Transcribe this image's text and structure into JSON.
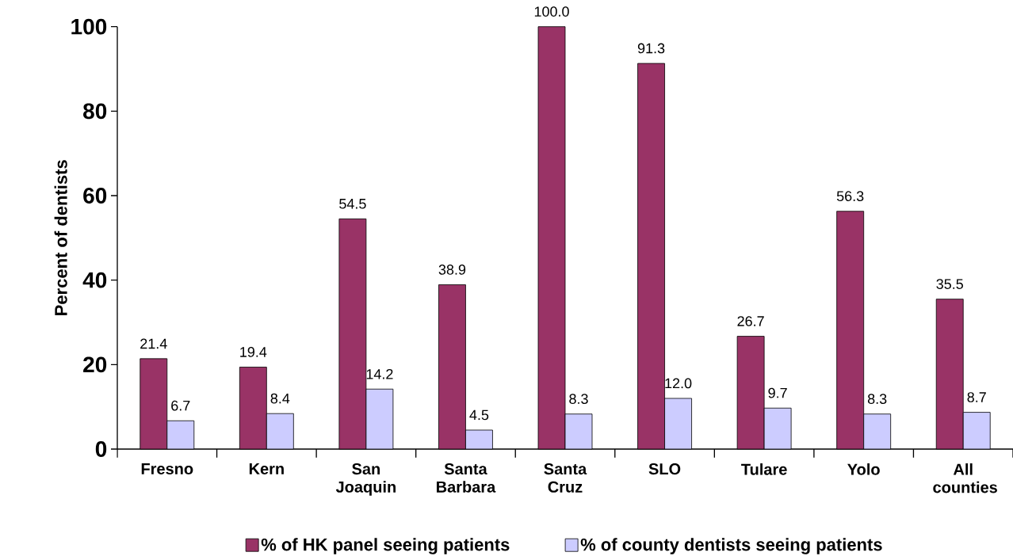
{
  "chart_data": {
    "type": "bar",
    "ylabel": "Percent of dentists",
    "categories": [
      "Fresno",
      "Kern",
      "San Joaquin",
      "Santa Barbara",
      "Santa Cruz",
      "SLO",
      "Tulare",
      "Yolo",
      "All counties"
    ],
    "series": [
      {
        "name": "% of HK panel seeing patients",
        "color": "#993366",
        "values": [
          21.4,
          19.4,
          54.5,
          38.9,
          100.0,
          91.3,
          26.7,
          56.3,
          35.5
        ],
        "value_labels": [
          "21.4",
          "19.4",
          "54.5",
          "38.9",
          "100.0",
          "91.3",
          "26.7",
          "56.3",
          "35.5"
        ]
      },
      {
        "name": "% of county dentists seeing patients",
        "color": "#ccccff",
        "values": [
          6.7,
          8.4,
          14.2,
          4.5,
          8.3,
          12.0,
          9.7,
          8.3,
          8.7
        ],
        "value_labels": [
          "6.7",
          "8.4",
          "14.2",
          "4.5",
          "8.3",
          "12.0",
          "9.7",
          "8.3",
          "8.7"
        ]
      }
    ],
    "ylim": [
      0,
      100
    ],
    "yticks": [
      0,
      20,
      40,
      60,
      80,
      100
    ],
    "grid": false,
    "legend": "bottom"
  }
}
